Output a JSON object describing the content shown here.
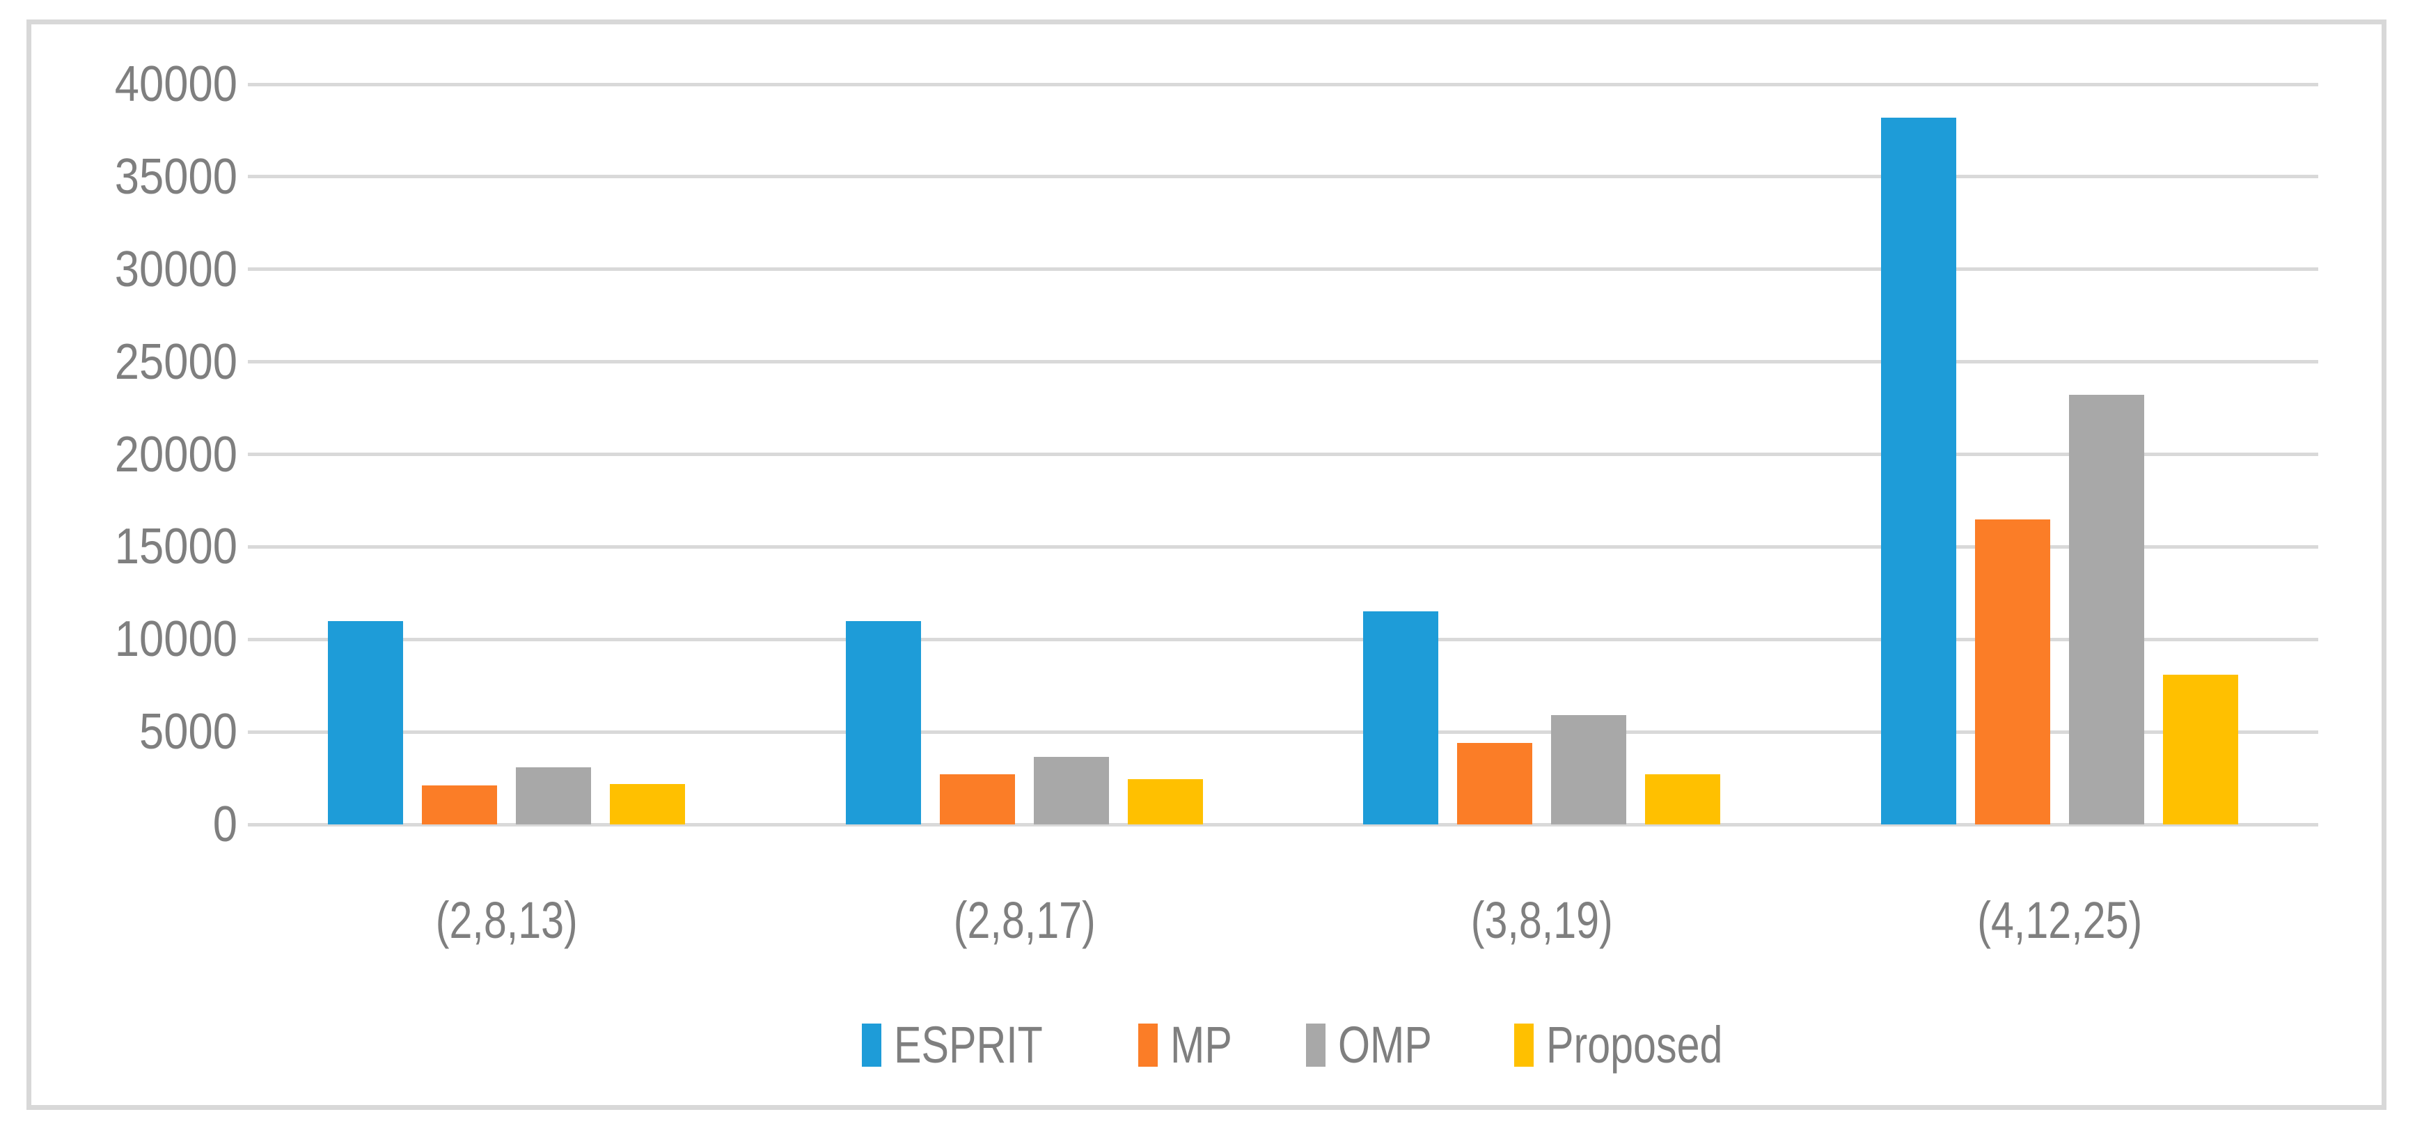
{
  "chart_data": {
    "type": "bar",
    "title": "",
    "xlabel": "",
    "ylabel": "",
    "categories": [
      "(2,8,13)",
      "(2,8,17)",
      "(3,8,19)",
      "(4,12,25)"
    ],
    "series": [
      {
        "name": "ESPRIT",
        "color": "#1E9CD8",
        "values": [
          11000,
          11000,
          11500,
          38200
        ]
      },
      {
        "name": "MP",
        "color": "#FB7D27",
        "values": [
          2100,
          2700,
          4400,
          16500
        ]
      },
      {
        "name": "OMP",
        "color": "#A8A8A8",
        "values": [
          3100,
          3650,
          5900,
          23200
        ]
      },
      {
        "name": "Proposed",
        "color": "#FFC000",
        "values": [
          2200,
          2450,
          2700,
          8100
        ]
      }
    ],
    "ylim": [
      0,
      40000
    ],
    "y_ticks": [
      0,
      5000,
      10000,
      15000,
      20000,
      25000,
      30000,
      35000,
      40000
    ],
    "grid": true,
    "legend_position": "bottom"
  },
  "colors": {
    "background": "#FFFFFF",
    "frame_border": "#D8D8D8",
    "gridline": "#D9D9D9",
    "axis_text": "#7F7F7F"
  }
}
